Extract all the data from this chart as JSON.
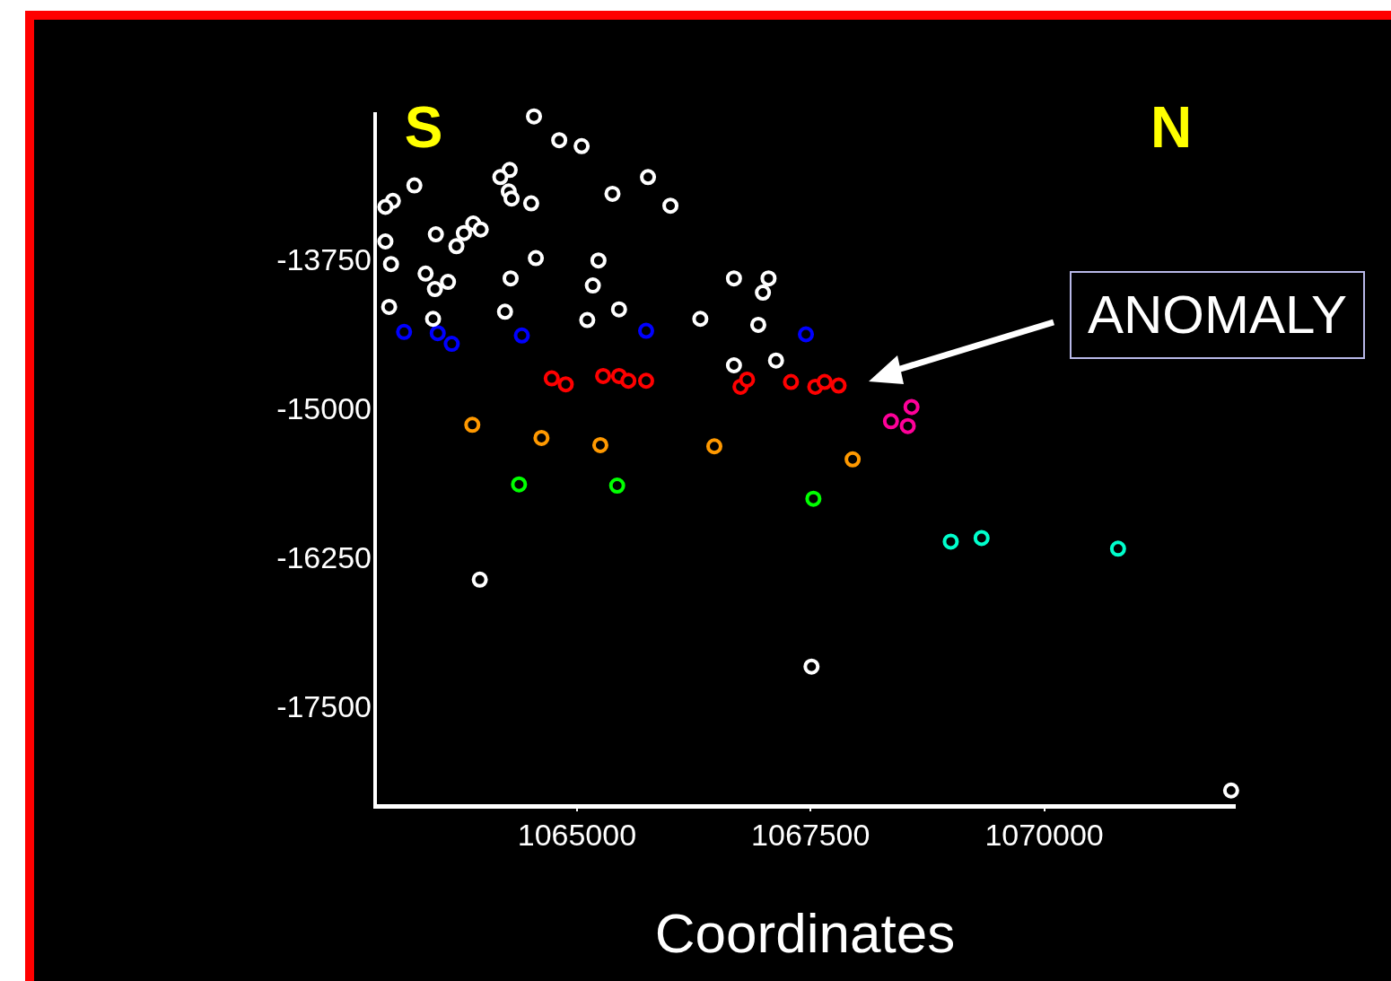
{
  "chart_data": {
    "type": "scatter",
    "xlabel": "Coordinates",
    "marker": "circle",
    "annotations": [
      "S",
      "N",
      "ANOMALY"
    ],
    "xlim": [
      1062840,
      1072040
    ],
    "xticks": [
      1065000,
      1067500,
      1070000
    ],
    "ylim": [
      -18320,
      -12510
    ],
    "yticks": [
      -13750,
      -15000,
      -16250,
      -17500
    ],
    "series": [
      {
        "color": "#ffffff",
        "x": [
          1064540,
          1064810,
          1065050,
          1064280,
          1064180,
          1063260,
          1063030,
          1062950,
          1064270,
          1064300,
          1064510,
          1065330,
          1065380,
          1065760,
          1066000,
          1063890,
          1063790,
          1063970,
          1063490,
          1063710,
          1062950,
          1063010,
          1064560,
          1065230,
          1063380,
          1063620,
          1063480,
          1064290,
          1065170,
          1062990,
          1064230,
          1063460,
          1065110,
          1065450,
          1066320,
          1066680,
          1067050,
          1066990,
          1066940,
          1066680,
          1067130,
          1063960,
          1067510,
          1072000
        ],
        "values": [
          -12530,
          -12730,
          -12780,
          -12980,
          -13040,
          -13110,
          -13240,
          -13290,
          -13160,
          -13220,
          -13260,
          null,
          -13180,
          -13040,
          -13280,
          -13430,
          -13510,
          -13480,
          -13520,
          -13620,
          -13580,
          -13770,
          -13720,
          -13740,
          -13850,
          -13920,
          -13980,
          -13890,
          -13950,
          -14130,
          -14170,
          -14230,
          -14240,
          -14150,
          -14230,
          -13890,
          -13890,
          -14010,
          -14280,
          -14620,
          -14580,
          -16420,
          -17150,
          -18190
        ]
      },
      {
        "color": "#0000ff",
        "x": [
          1063150,
          1063510,
          1063660,
          1064410,
          1065740,
          1067450
        ],
        "values": [
          -14340,
          -14350,
          -14440,
          -14370,
          -14330,
          -14360
        ]
      },
      {
        "color": "#ff0000",
        "x": [
          1064730,
          1064880,
          1065280,
          1065450,
          1065550,
          1065740,
          1066750,
          1066820,
          1067290,
          1067550,
          1067650,
          1067800
        ],
        "values": [
          -14730,
          -14780,
          -14710,
          -14710,
          -14750,
          -14750,
          -14800,
          -14740,
          -14760,
          -14800,
          -14760,
          -14790
        ]
      },
      {
        "color": "#ff0099",
        "x": [
          1068580,
          1068360,
          1068540
        ],
        "values": [
          -14970,
          -15090,
          -15130
        ]
      },
      {
        "color": "#ff9900",
        "x": [
          1063880,
          1064620,
          1065250,
          1066470,
          1067950
        ],
        "values": [
          -15120,
          -15230,
          -15290,
          -15300,
          -15410
        ]
      },
      {
        "color": "#00ff00",
        "x": [
          1064380,
          1065430,
          1067530
        ],
        "values": [
          -15620,
          -15630,
          -15740
        ]
      },
      {
        "color": "#00ffcc",
        "x": [
          1069000,
          1069330,
          1070790
        ],
        "values": [
          -16100,
          -16070,
          -16160
        ]
      }
    ]
  }
}
